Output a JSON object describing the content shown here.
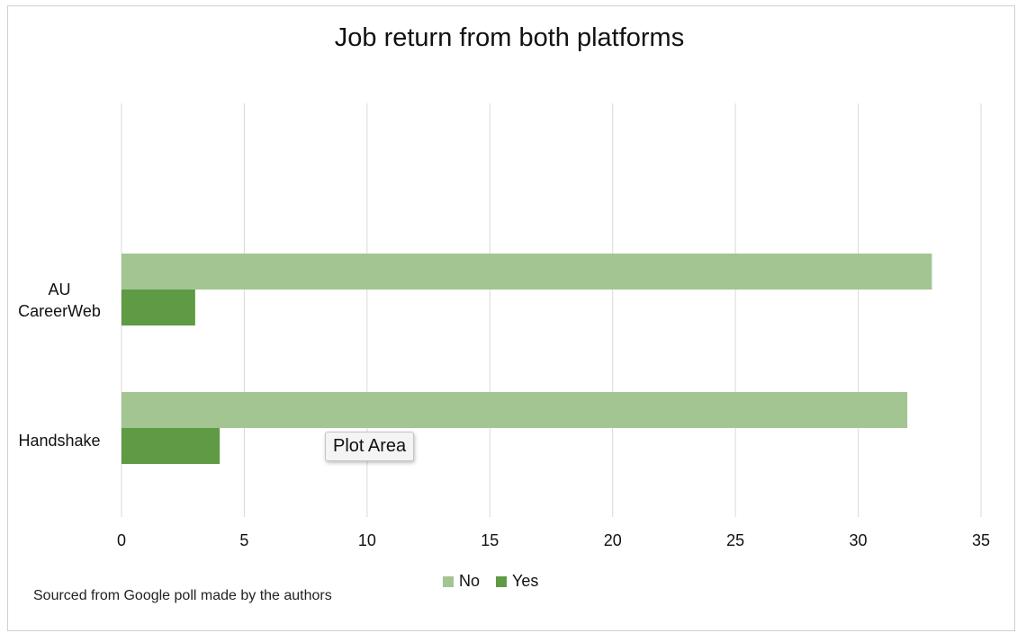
{
  "chart_data": {
    "type": "bar",
    "orientation": "horizontal",
    "title": "Job return from both platforms",
    "categories": [
      "AU CareerWeb",
      "Handshake"
    ],
    "category_lines": [
      [
        "AU",
        "CareerWeb"
      ],
      [
        "Handshake"
      ]
    ],
    "series": [
      {
        "name": "No",
        "values": [
          33,
          32
        ],
        "color": "#a2c592"
      },
      {
        "name": "Yes",
        "values": [
          3,
          4
        ],
        "color": "#5f9a44"
      }
    ],
    "xlim": [
      0,
      35
    ],
    "x_ticks": [
      "0",
      "5",
      "10",
      "15",
      "20",
      "25",
      "30",
      "35"
    ],
    "grid": "vertical",
    "legend_position": "bottom"
  },
  "tooltip": {
    "text": "Plot Area"
  },
  "source_note": "Sourced from Google poll made by the authors"
}
